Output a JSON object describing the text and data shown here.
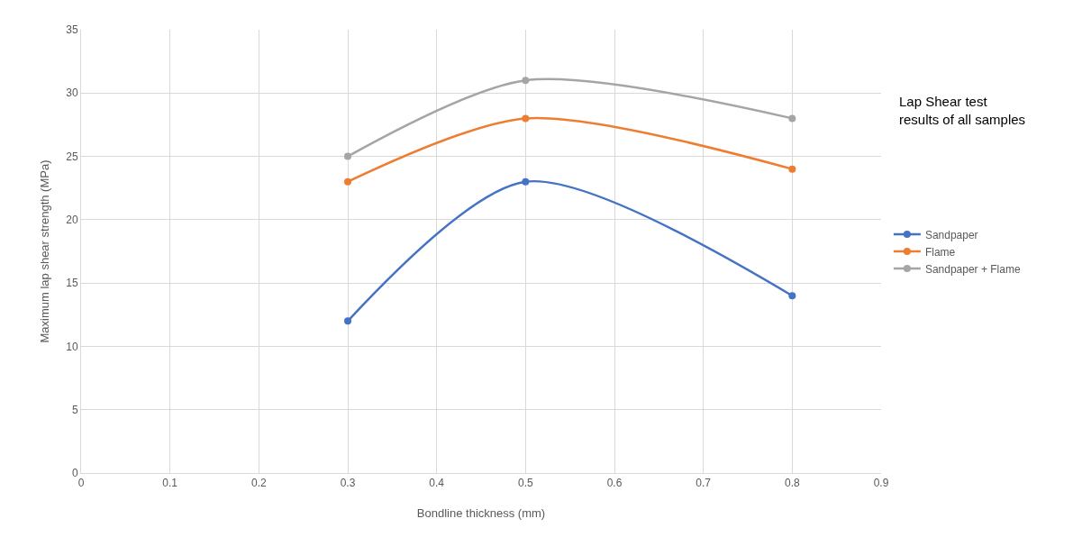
{
  "chart_data": {
    "type": "line",
    "xlabel": "Bondline thickness (mm)",
    "ylabel": "Maximum lap shear strength (MPa)",
    "annotations": [
      "Lap Shear test\nresults of all samples"
    ],
    "x": [
      0.3,
      0.5,
      0.8
    ],
    "series": [
      {
        "name": "Sandpaper",
        "color": "#4472c4",
        "values": [
          12,
          23,
          14
        ]
      },
      {
        "name": "Flame",
        "color": "#ed7d31",
        "values": [
          23,
          28,
          24
        ]
      },
      {
        "name": "Sandpaper + Flame",
        "color": "#a5a5a5",
        "values": [
          25,
          31,
          28
        ]
      }
    ],
    "xlim": [
      0,
      0.9
    ],
    "xticks": [
      0,
      0.1,
      0.2,
      0.3,
      0.4,
      0.5,
      0.6,
      0.7,
      0.8,
      0.9
    ],
    "ylim": [
      0,
      35
    ],
    "yticks": [
      0,
      5,
      10,
      15,
      20,
      25,
      30,
      35
    ],
    "grid": true,
    "legend": "right",
    "marker": "circle",
    "line_style": "solid"
  }
}
